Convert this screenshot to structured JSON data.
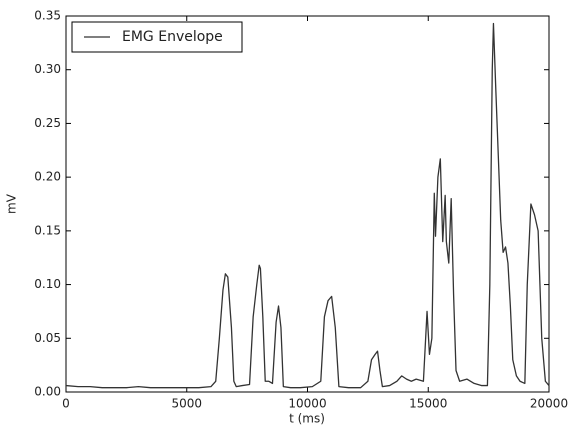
{
  "chart_data": {
    "type": "line",
    "x": [
      0,
      500,
      1000,
      1500,
      2000,
      2500,
      3000,
      3500,
      4000,
      4500,
      5000,
      5500,
      6000,
      6200,
      6350,
      6500,
      6600,
      6700,
      6850,
      6950,
      7050,
      7300,
      7600,
      7750,
      7900,
      8000,
      8050,
      8150,
      8250,
      8400,
      8550,
      8700,
      8800,
      8900,
      9000,
      9300,
      9700,
      10200,
      10550,
      10700,
      10850,
      11000,
      11150,
      11300,
      11700,
      12200,
      12500,
      12650,
      12800,
      12900,
      13000,
      13100,
      13400,
      13700,
      13900,
      14100,
      14300,
      14500,
      14800,
      14950,
      15050,
      15150,
      15250,
      15300,
      15400,
      15500,
      15600,
      15700,
      15750,
      15850,
      15950,
      16050,
      16150,
      16300,
      16600,
      16900,
      17200,
      17450,
      17550,
      17650,
      17700,
      17800,
      17900,
      18000,
      18100,
      18200,
      18300,
      18400,
      18500,
      18650,
      18800,
      19000,
      19100,
      19250,
      19400,
      19550,
      19700,
      19850,
      20000
    ],
    "series": [
      {
        "name": "EMG Envelope",
        "color": "#333333",
        "values": [
          0.006,
          0.005,
          0.005,
          0.004,
          0.004,
          0.004,
          0.005,
          0.004,
          0.004,
          0.004,
          0.004,
          0.004,
          0.005,
          0.01,
          0.05,
          0.095,
          0.11,
          0.107,
          0.06,
          0.01,
          0.005,
          0.006,
          0.007,
          0.07,
          0.1,
          0.118,
          0.115,
          0.07,
          0.01,
          0.01,
          0.008,
          0.065,
          0.08,
          0.06,
          0.005,
          0.004,
          0.004,
          0.005,
          0.01,
          0.07,
          0.085,
          0.089,
          0.06,
          0.005,
          0.004,
          0.004,
          0.01,
          0.03,
          0.035,
          0.038,
          0.02,
          0.005,
          0.006,
          0.01,
          0.015,
          0.012,
          0.01,
          0.012,
          0.01,
          0.075,
          0.035,
          0.05,
          0.185,
          0.145,
          0.2,
          0.217,
          0.14,
          0.183,
          0.14,
          0.12,
          0.18,
          0.09,
          0.02,
          0.01,
          0.012,
          0.008,
          0.006,
          0.006,
          0.1,
          0.3,
          0.343,
          0.28,
          0.22,
          0.16,
          0.13,
          0.135,
          0.12,
          0.08,
          0.03,
          0.015,
          0.01,
          0.008,
          0.1,
          0.175,
          0.165,
          0.15,
          0.05,
          0.01,
          0.006
        ]
      }
    ],
    "x_label": "t (ms)",
    "y_label": "mV",
    "xlim": [
      0,
      20000
    ],
    "xticks": [
      0,
      5000,
      10000,
      15000,
      20000
    ],
    "ylim": [
      0,
      0.35
    ],
    "yticks": [
      {
        "value": 0,
        "label": "0.00"
      },
      {
        "value": 0.05,
        "label": "0.05"
      },
      {
        "value": 0.1,
        "label": "0.10"
      },
      {
        "value": 0.15,
        "label": "0.15"
      },
      {
        "value": 0.2,
        "label": "0.20"
      },
      {
        "value": 0.25,
        "label": "0.25"
      },
      {
        "value": 0.3,
        "label": "0.30"
      },
      {
        "value": 0.35,
        "label": "0.35"
      }
    ],
    "legend": "upper left"
  }
}
